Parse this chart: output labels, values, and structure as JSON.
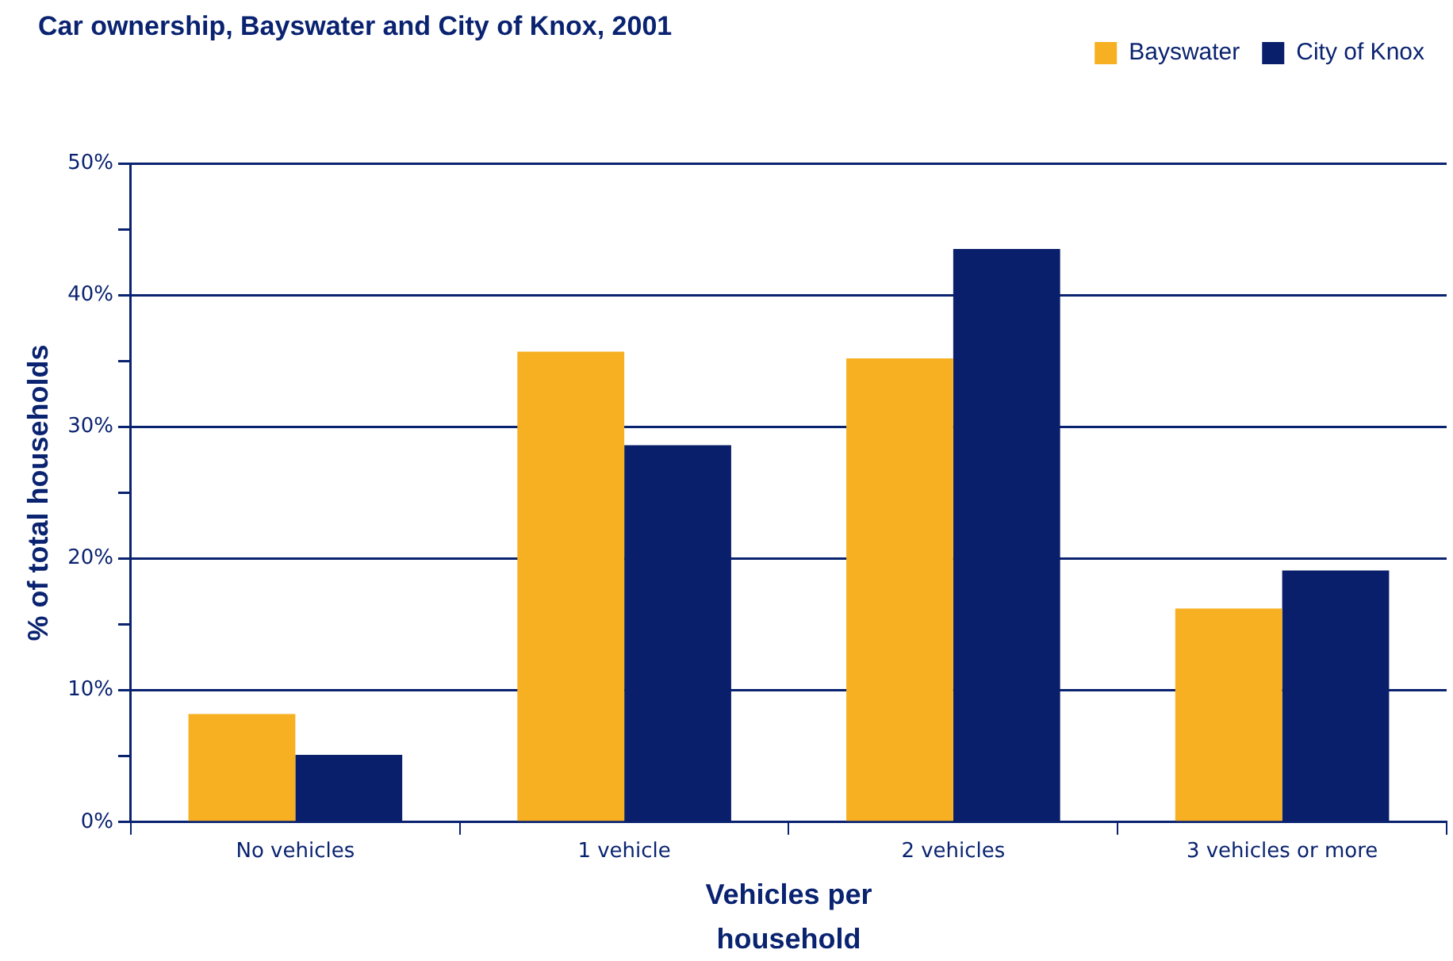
{
  "chart_data": {
    "type": "bar",
    "title": "Car ownership, Bayswater and City of Knox, 2001",
    "xlabel": "Vehicles per household",
    "ylabel": "% of total households",
    "categories": [
      "No vehicles",
      "1 vehicle",
      "2 vehicles",
      "3 vehicles or more"
    ],
    "series": [
      {
        "name": "Bayswater",
        "color": "#f7b021",
        "values": [
          8.2,
          35.7,
          35.2,
          16.2
        ]
      },
      {
        "name": "City of Knox",
        "color": "#0a1f6b",
        "values": [
          5.1,
          28.6,
          43.5,
          19.1
        ]
      }
    ],
    "ylim": [
      0,
      50
    ],
    "yticks": [
      {
        "value": 0,
        "label": "0%"
      },
      {
        "value": 5,
        "label": null
      },
      {
        "value": 10,
        "label": "10%"
      },
      {
        "value": 15,
        "label": null
      },
      {
        "value": 20,
        "label": "20%"
      },
      {
        "value": 25,
        "label": null
      },
      {
        "value": 30,
        "label": "30%"
      },
      {
        "value": 35,
        "label": null
      },
      {
        "value": 40,
        "label": "40%"
      },
      {
        "value": 45,
        "label": null
      },
      {
        "value": 50,
        "label": "50%"
      }
    ],
    "grid": "y",
    "legend": "top right"
  }
}
